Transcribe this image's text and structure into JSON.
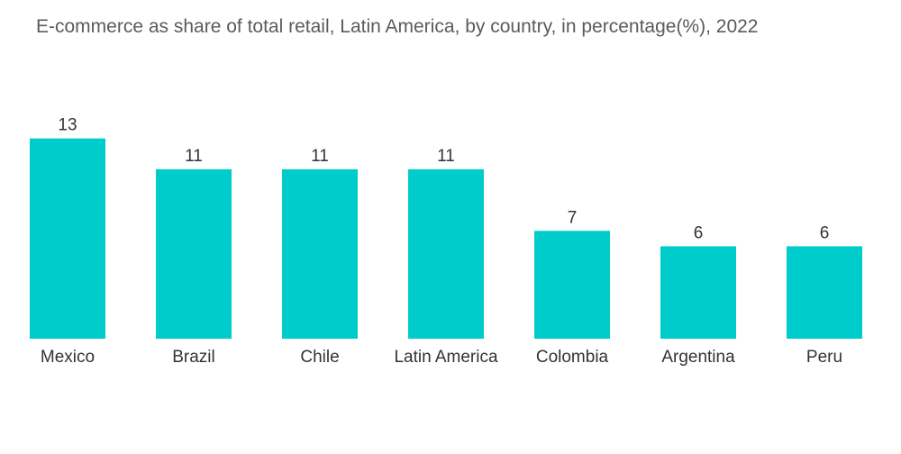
{
  "chart_data": {
    "type": "bar",
    "title": "E-commerce as share of total retail, Latin America, by country, in percentage(%),  2022",
    "categories": [
      "Mexico",
      "Brazil",
      "Chile",
      "Latin America",
      "Colombia",
      "Argentina",
      "Peru"
    ],
    "values": [
      13,
      11,
      11,
      11,
      7,
      6,
      6
    ],
    "value_labels": [
      "13",
      "11",
      "11",
      "11",
      "7",
      "6",
      "6"
    ],
    "xlabel": "",
    "ylabel": "",
    "ylim": [
      0,
      13
    ],
    "grid": false,
    "legend": "none",
    "bar_color": "#00cccc"
  }
}
